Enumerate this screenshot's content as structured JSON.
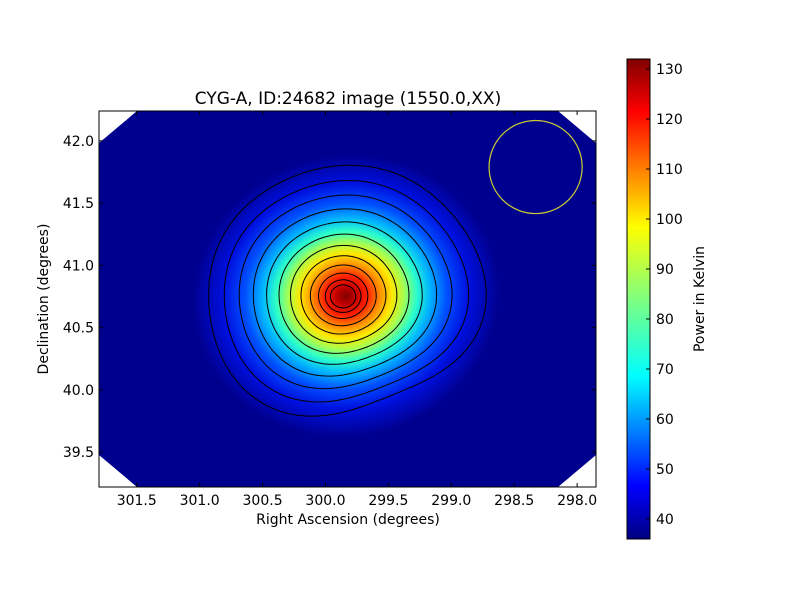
{
  "chart_data": {
    "type": "heatmap",
    "title": "CYG-A, ID:24682 image (1550.0,XX)",
    "xlabel": "Right Ascension (degrees)",
    "ylabel": "Declination (degrees)",
    "xlim": [
      301.8,
      297.85
    ],
    "ylim": [
      39.22,
      42.24
    ],
    "x_axis_reversed": true,
    "x_ticks": [
      "301.5",
      "301.0",
      "300.5",
      "300.0",
      "299.5",
      "299.0",
      "298.5",
      "298.0"
    ],
    "y_ticks": [
      "39.5",
      "40.0",
      "40.5",
      "41.0",
      "41.5",
      "42.0"
    ],
    "colormap": "jet",
    "colorbar": {
      "label": "Power in Kelvin",
      "range": [
        36,
        132
      ],
      "ticks": [
        "40",
        "50",
        "60",
        "70",
        "80",
        "90",
        "100",
        "110",
        "120",
        "130"
      ]
    },
    "source_peak": {
      "ra": 299.86,
      "dec": 40.75,
      "value": 132
    },
    "background_level": 37,
    "contours": "black, regularly spaced levels around the peak",
    "beam_circle": {
      "ra": 298.33,
      "dec": 41.79,
      "radius_deg": 0.37,
      "color": "#cccc33"
    },
    "image_corners_blank": true
  }
}
